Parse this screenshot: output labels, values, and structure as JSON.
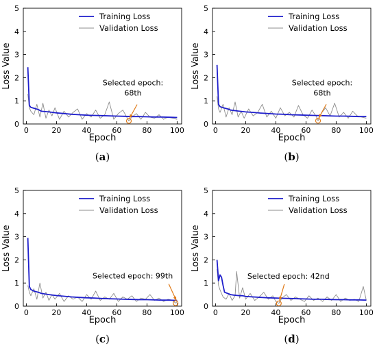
{
  "colors": {
    "training": "#1f1fcc",
    "validation": "#8c8c8c",
    "annotation": "#e07b1a"
  },
  "chart_data": [
    {
      "type": "line",
      "panel": "(a)",
      "panel_letter": "a",
      "xlabel": "Epoch",
      "ylabel": "Loss Value",
      "xlim": [
        -2,
        103
      ],
      "ylim": [
        0,
        5
      ],
      "xticks": [
        0,
        20,
        40,
        60,
        80,
        100
      ],
      "yticks": [
        0,
        1,
        2,
        3,
        4,
        5
      ],
      "legend": "top-right",
      "grid": false,
      "annotation": {
        "text": [
          "Selected epoch:",
          "68th"
        ],
        "epoch": 68,
        "loss": 0.13
      },
      "series": [
        {
          "name": "Training Loss",
          "x": [
            1,
            2,
            3,
            5,
            8,
            10,
            15,
            20,
            25,
            30,
            35,
            40,
            45,
            50,
            55,
            60,
            65,
            70,
            75,
            80,
            85,
            90,
            95,
            100
          ],
          "values": [
            2.45,
            0.8,
            0.72,
            0.68,
            0.62,
            0.55,
            0.52,
            0.48,
            0.45,
            0.42,
            0.4,
            0.38,
            0.37,
            0.36,
            0.35,
            0.34,
            0.33,
            0.32,
            0.32,
            0.31,
            0.3,
            0.3,
            0.29,
            0.28
          ]
        },
        {
          "name": "Validation Loss",
          "x": [
            1,
            2,
            3,
            5,
            7,
            9,
            11,
            13,
            15,
            17,
            19,
            22,
            25,
            28,
            31,
            34,
            37,
            40,
            43,
            46,
            49,
            52,
            55,
            58,
            61,
            64,
            67,
            68,
            70,
            73,
            76,
            79,
            82,
            85,
            88,
            91,
            94,
            97,
            100
          ],
          "values": [
            1.3,
            0.7,
            0.55,
            0.4,
            0.85,
            0.3,
            0.9,
            0.25,
            0.6,
            0.35,
            0.7,
            0.2,
            0.55,
            0.3,
            0.5,
            0.65,
            0.2,
            0.45,
            0.3,
            0.6,
            0.25,
            0.4,
            0.95,
            0.2,
            0.45,
            0.6,
            0.25,
            0.13,
            0.3,
            0.45,
            0.2,
            0.5,
            0.3,
            0.25,
            0.4,
            0.2,
            0.3,
            0.25,
            0.2
          ]
        }
      ]
    },
    {
      "type": "line",
      "panel": "(b)",
      "panel_letter": "b",
      "xlabel": "Epoch",
      "ylabel": "Loss Value",
      "xlim": [
        -2,
        103
      ],
      "ylim": [
        0,
        5
      ],
      "xticks": [
        0,
        20,
        40,
        60,
        80,
        100
      ],
      "yticks": [
        0,
        1,
        2,
        3,
        4,
        5
      ],
      "legend": "top-right",
      "grid": false,
      "annotation": {
        "text": [
          "Selected epoch:",
          "68th"
        ],
        "epoch": 68,
        "loss": 0.14
      },
      "series": [
        {
          "name": "Training Loss",
          "x": [
            1,
            2,
            3,
            5,
            8,
            10,
            15,
            20,
            25,
            30,
            35,
            40,
            45,
            50,
            55,
            60,
            65,
            70,
            75,
            80,
            85,
            90,
            95,
            100
          ],
          "values": [
            2.55,
            0.85,
            0.75,
            0.7,
            0.65,
            0.6,
            0.56,
            0.52,
            0.5,
            0.47,
            0.45,
            0.43,
            0.42,
            0.4,
            0.39,
            0.38,
            0.37,
            0.36,
            0.35,
            0.34,
            0.34,
            0.33,
            0.32,
            0.32
          ]
        },
        {
          "name": "Validation Loss",
          "x": [
            1,
            2,
            3,
            5,
            7,
            9,
            11,
            13,
            15,
            17,
            19,
            22,
            25,
            28,
            31,
            34,
            37,
            40,
            43,
            46,
            49,
            52,
            55,
            58,
            61,
            64,
            67,
            68,
            70,
            73,
            76,
            79,
            82,
            85,
            88,
            91,
            94,
            97,
            100
          ],
          "values": [
            1.2,
            0.65,
            0.5,
            0.85,
            0.3,
            0.7,
            0.4,
            0.95,
            0.3,
            0.55,
            0.25,
            0.65,
            0.35,
            0.5,
            0.85,
            0.3,
            0.55,
            0.25,
            0.7,
            0.35,
            0.5,
            0.3,
            0.8,
            0.4,
            0.25,
            0.6,
            0.3,
            0.14,
            0.45,
            0.7,
            0.35,
            0.9,
            0.3,
            0.5,
            0.25,
            0.55,
            0.35,
            0.3,
            0.25
          ]
        }
      ]
    },
    {
      "type": "line",
      "panel": "(c)",
      "panel_letter": "c",
      "xlabel": "Epoch",
      "ylabel": "Loss Value",
      "xlim": [
        -2,
        103
      ],
      "ylim": [
        0,
        5
      ],
      "xticks": [
        0,
        20,
        40,
        60,
        80,
        100
      ],
      "yticks": [
        0,
        1,
        2,
        3,
        4,
        5
      ],
      "legend": "top-right",
      "grid": false,
      "annotation": {
        "text": [
          "Selected epoch: 99th"
        ],
        "epoch": 99,
        "loss": 0.13
      },
      "series": [
        {
          "name": "Training Loss",
          "x": [
            1,
            2,
            3,
            5,
            8,
            10,
            15,
            20,
            25,
            30,
            35,
            40,
            45,
            50,
            55,
            60,
            65,
            70,
            75,
            80,
            85,
            90,
            95,
            100
          ],
          "values": [
            2.95,
            0.85,
            0.72,
            0.65,
            0.6,
            0.55,
            0.5,
            0.46,
            0.43,
            0.4,
            0.38,
            0.36,
            0.35,
            0.33,
            0.32,
            0.31,
            0.3,
            0.29,
            0.28,
            0.28,
            0.27,
            0.26,
            0.26,
            0.25
          ]
        },
        {
          "name": "Validation Loss",
          "x": [
            1,
            2,
            3,
            5,
            7,
            9,
            11,
            13,
            15,
            17,
            19,
            22,
            25,
            28,
            31,
            34,
            37,
            40,
            43,
            46,
            49,
            52,
            55,
            58,
            61,
            64,
            67,
            70,
            73,
            76,
            79,
            82,
            85,
            88,
            91,
            94,
            97,
            99,
            100
          ],
          "values": [
            0.9,
            0.6,
            0.45,
            0.75,
            0.3,
            1.0,
            0.35,
            0.6,
            0.25,
            0.5,
            0.3,
            0.55,
            0.2,
            0.45,
            0.3,
            0.4,
            0.2,
            0.5,
            0.3,
            0.65,
            0.25,
            0.4,
            0.3,
            0.55,
            0.2,
            0.4,
            0.3,
            0.45,
            0.2,
            0.35,
            0.3,
            0.5,
            0.25,
            0.35,
            0.2,
            0.3,
            0.25,
            0.13,
            0.2
          ]
        }
      ]
    },
    {
      "type": "line",
      "panel": "(d)",
      "panel_letter": "d",
      "xlabel": "Epoch",
      "ylabel": "Loss Value",
      "xlim": [
        -2,
        103
      ],
      "ylim": [
        0,
        5
      ],
      "xticks": [
        0,
        20,
        40,
        60,
        80,
        100
      ],
      "yticks": [
        0,
        1,
        2,
        3,
        4,
        5
      ],
      "legend": "top-right",
      "grid": false,
      "annotation": {
        "text": [
          "Selected epoch: 42nd"
        ],
        "epoch": 42,
        "loss": 0.12
      },
      "series": [
        {
          "name": "Training Loss",
          "x": [
            1,
            2,
            3,
            4,
            5,
            6,
            8,
            10,
            12,
            15,
            18,
            20,
            25,
            30,
            35,
            40,
            45,
            50,
            55,
            60,
            65,
            70,
            75,
            80,
            85,
            90,
            95,
            100
          ],
          "values": [
            2.0,
            1.1,
            1.35,
            1.25,
            0.9,
            0.6,
            0.55,
            0.5,
            0.48,
            0.46,
            0.45,
            0.42,
            0.4,
            0.38,
            0.36,
            0.35,
            0.34,
            0.33,
            0.32,
            0.31,
            0.3,
            0.3,
            0.29,
            0.28,
            0.28,
            0.27,
            0.27,
            0.26
          ]
        },
        {
          "name": "Validation Loss",
          "x": [
            1,
            2,
            3,
            5,
            7,
            9,
            11,
            13,
            14,
            16,
            18,
            20,
            23,
            26,
            29,
            32,
            35,
            38,
            40,
            42,
            44,
            47,
            50,
            53,
            56,
            59,
            62,
            65,
            68,
            71,
            74,
            77,
            80,
            83,
            86,
            89,
            92,
            95,
            98,
            100
          ],
          "values": [
            1.6,
            0.9,
            0.7,
            0.4,
            0.3,
            0.55,
            0.25,
            0.45,
            1.5,
            0.35,
            0.8,
            0.3,
            0.55,
            0.25,
            0.4,
            0.6,
            0.3,
            0.45,
            0.2,
            0.12,
            0.35,
            0.5,
            0.25,
            0.4,
            0.3,
            0.2,
            0.45,
            0.25,
            0.35,
            0.2,
            0.4,
            0.25,
            0.5,
            0.2,
            0.35,
            0.25,
            0.3,
            0.2,
            0.85,
            0.25
          ]
        }
      ]
    }
  ]
}
